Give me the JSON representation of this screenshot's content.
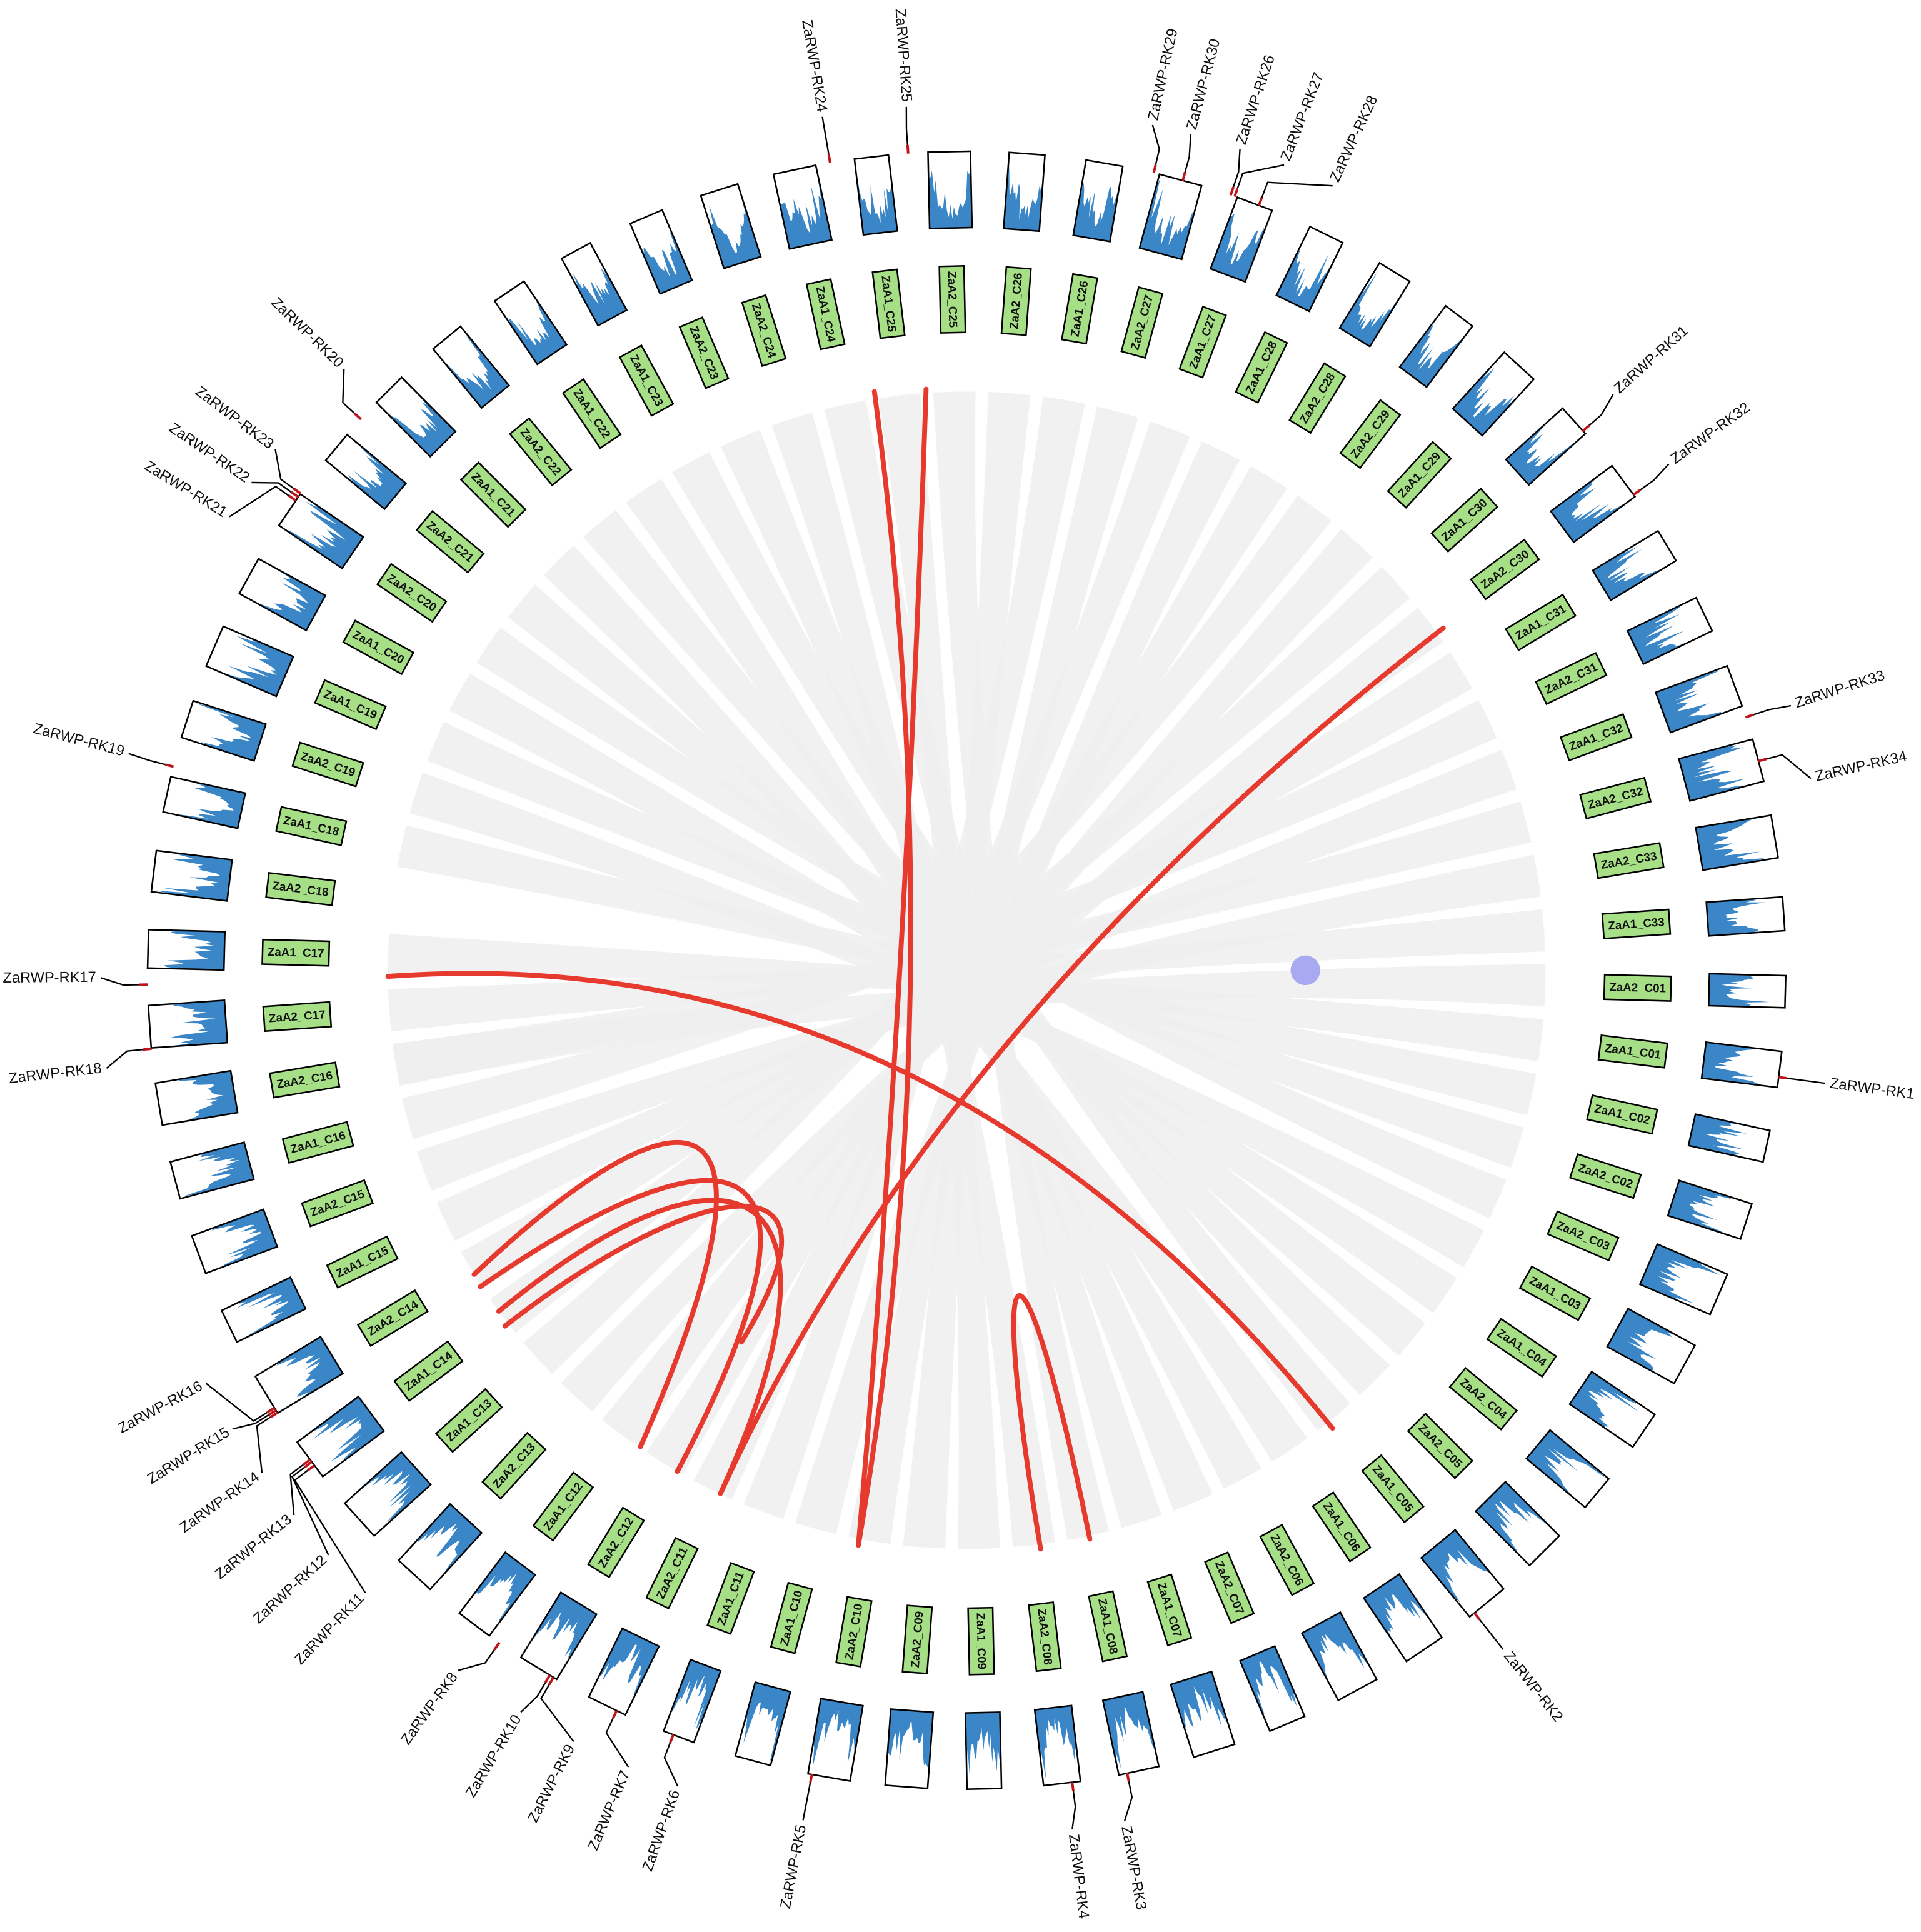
{
  "chromosomes": [
    "ZaA2_C01",
    "ZaA1_C01",
    "ZaA1_C02",
    "ZaA2_C02",
    "ZaA2_C03",
    "ZaA1_C03",
    "ZaA1_C04",
    "ZaA2_C04",
    "ZaA2_C05",
    "ZaA1_C05",
    "ZaA1_C06",
    "ZaA2_C06",
    "ZaA2_C07",
    "ZaA1_C07",
    "ZaA1_C08",
    "ZaA2_C08",
    "ZaA1_C09",
    "ZaA2_C09",
    "ZaA2_C10",
    "ZaA1_C10",
    "ZaA1_C11",
    "ZaA2_C11",
    "ZaA2_C12",
    "ZaA1_C12",
    "ZaA2_C13",
    "ZaA1_C13",
    "ZaA1_C14",
    "ZaA2_C14",
    "ZaA1_C15",
    "ZaA2_C15",
    "ZaA1_C16",
    "ZaA2_C16",
    "ZaA2_C17",
    "ZaA1_C17",
    "ZaA2_C18",
    "ZaA1_C18",
    "ZaA2_C19",
    "ZaA1_C19",
    "ZaA1_C20",
    "ZaA2_C20",
    "ZaA2_C21",
    "ZaA1_C21",
    "ZaA2_C22",
    "ZaA1_C22",
    "ZaA1_C23",
    "ZaA2_C23",
    "ZaA2_C24",
    "ZaA1_C24",
    "ZaA1_C25",
    "ZaA2_C25",
    "ZaA2_C26",
    "ZaA1_C26",
    "ZaA2_C27",
    "ZaA1_C27",
    "ZaA1_C28",
    "ZaA2_C28",
    "ZaA2_C29",
    "ZaA1_C29",
    "ZaA1_C30",
    "ZaA2_C30",
    "ZaA1_C31",
    "ZaA2_C31",
    "ZaA1_C32",
    "ZaA2_C32",
    "ZaA2_C33",
    "ZaA1_C33"
  ],
  "genes": [
    "ZaRWP-RK1",
    "ZaRWP-RK2",
    "ZaRWP-RK3",
    "ZaRWP-RK4",
    "ZaRWP-RK5",
    "ZaRWP-RK6",
    "ZaRWP-RK7",
    "ZaRWP-RK8",
    "ZaRWP-RK9",
    "ZaRWP-RK10",
    "ZaRWP-RK11",
    "ZaRWP-RK12",
    "ZaRWP-RK13",
    "ZaRWP-RK14",
    "ZaRWP-RK15",
    "ZaRWP-RK16",
    "ZaRWP-RK17",
    "ZaRWP-RK18",
    "ZaRWP-RK19",
    "ZaRWP-RK20",
    "ZaRWP-RK21",
    "ZaRWP-RK22",
    "ZaRWP-RK23",
    "ZaRWP-RK24",
    "ZaRWP-RK25",
    "ZaRWP-RK26",
    "ZaRWP-RK27",
    "ZaRWP-RK28",
    "ZaRWP-RK29",
    "ZaRWP-RK30",
    "ZaRWP-RK31",
    "ZaRWP-RK32",
    "ZaRWP-RK33",
    "ZaRWP-RK34"
  ]
}
